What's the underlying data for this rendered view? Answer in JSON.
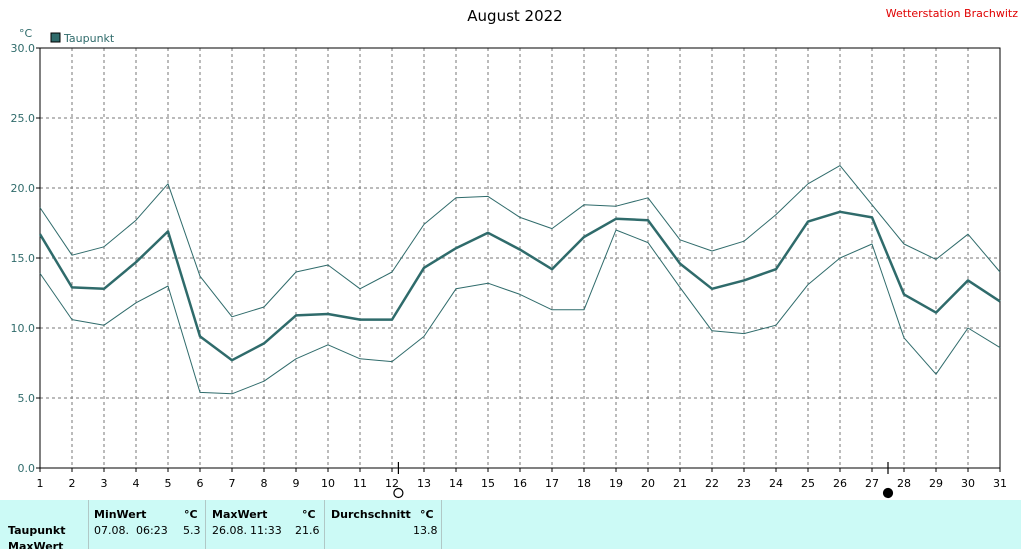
{
  "chart_data": {
    "type": "line",
    "title": "August 2022",
    "station": "Wetterstation Brachwitz",
    "unit_label": "°C",
    "legend": "Taupunkt",
    "legend_color": "#2f6b6b",
    "line_color": "#2f6b6b",
    "ylim": [
      0,
      30
    ],
    "yticks": [
      "0.0",
      "5.0",
      "10.0",
      "15.0",
      "20.0",
      "25.0",
      "30.0"
    ],
    "x": [
      1,
      2,
      3,
      4,
      5,
      6,
      7,
      8,
      9,
      10,
      11,
      12,
      13,
      14,
      15,
      16,
      17,
      18,
      19,
      20,
      21,
      22,
      23,
      24,
      25,
      26,
      27,
      28,
      29,
      30,
      31
    ],
    "series": [
      {
        "name": "Taupunkt",
        "values": [
          16.7,
          12.9,
          12.8,
          14.7,
          16.9,
          9.4,
          7.7,
          8.9,
          10.9,
          11.0,
          10.6,
          10.6,
          14.3,
          15.7,
          16.8,
          15.6,
          14.2,
          16.5,
          17.8,
          17.7,
          14.6,
          12.8,
          13.4,
          14.2,
          17.6,
          18.3,
          17.9,
          12.4,
          11.1,
          13.4,
          11.9
        ]
      },
      {
        "values": [
          18.6,
          15.2,
          15.8,
          17.7,
          20.3,
          13.7,
          10.8,
          11.5,
          14.0,
          14.5,
          12.8,
          14.0,
          17.4,
          19.3,
          19.4,
          17.9,
          17.1,
          18.8,
          18.7,
          19.3,
          16.3,
          15.5,
          16.2,
          18.1,
          20.3,
          21.6,
          18.8,
          16.0,
          14.9,
          16.7,
          14.0
        ]
      },
      {
        "values": [
          13.9,
          10.6,
          10.2,
          11.8,
          13.0,
          5.4,
          5.3,
          6.2,
          7.8,
          8.8,
          7.8,
          7.6,
          9.4,
          12.8,
          13.2,
          12.4,
          11.3,
          11.3,
          17.0,
          16.1,
          12.9,
          9.8,
          9.6,
          10.2,
          13.1,
          15.0,
          16.0,
          9.3,
          6.7,
          10.0,
          8.6
        ]
      }
    ],
    "moon_markers": [
      {
        "day": 12,
        "phase": "full"
      },
      {
        "day": 27,
        "phase": "new"
      }
    ],
    "grid": true
  },
  "stats": {
    "row_label": "Taupunkt",
    "row_label_2": "MaxWert",
    "min_header": "MinWert",
    "max_header": "MaxWert",
    "avg_header": "Durchschnitt",
    "unit": "°C",
    "min_date": "07.08.",
    "min_time": "06:23",
    "min_value": "5.3",
    "max_date": "26.08.",
    "max_time": "11:33",
    "max_value": "21.6",
    "avg_value": "13.8"
  }
}
